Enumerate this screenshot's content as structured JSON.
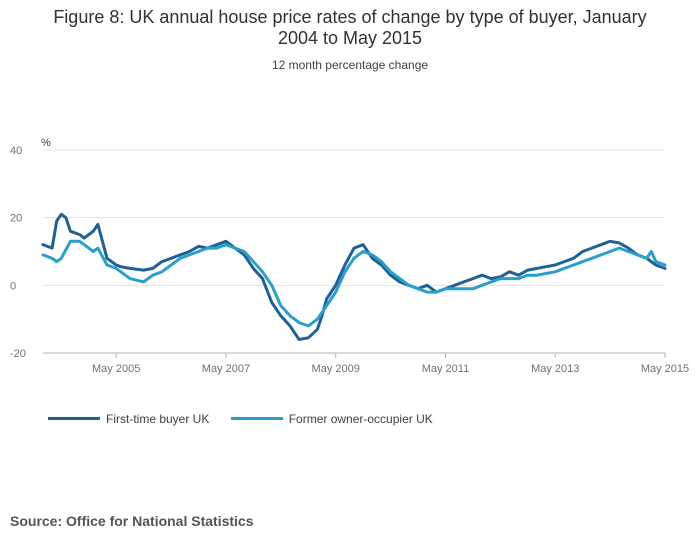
{
  "title_line1": "Figure 8: UK annual house price rates of change by type of buyer, January",
  "title_line2": "2004 to May 2015",
  "subtitle": "12 month percentage change",
  "source": "Source: Office for National Statistics",
  "colors": {
    "first_time": "#206095",
    "former_owner": "#27a0cc",
    "grid": "#e3e3e3"
  },
  "chart_data": {
    "type": "line",
    "ylabel": "%",
    "ylim": [
      -20,
      40
    ],
    "yticks": [
      -20,
      0,
      20,
      40
    ],
    "x_start": "2004-01",
    "x_end": "2015-05",
    "xticks": [
      "May 2005",
      "May 2007",
      "May 2009",
      "May 2011",
      "May 2013",
      "May 2015"
    ],
    "legend_position": "bottom-left",
    "series": [
      {
        "name": "First-time buyer UK",
        "x": [
          "2004-01",
          "2004-03",
          "2004-04",
          "2004-05",
          "2004-06",
          "2004-07",
          "2004-09",
          "2004-10",
          "2004-12",
          "2005-01",
          "2005-03",
          "2005-04",
          "2005-05",
          "2005-06",
          "2005-08",
          "2005-11",
          "2006-01",
          "2006-02",
          "2006-03",
          "2006-05",
          "2006-07",
          "2006-09",
          "2006-11",
          "2007-01",
          "2007-03",
          "2007-05",
          "2007-07",
          "2007-09",
          "2007-11",
          "2008-01",
          "2008-03",
          "2008-05",
          "2008-07",
          "2008-09",
          "2008-11",
          "2009-01",
          "2009-02",
          "2009-03",
          "2009-05",
          "2009-07",
          "2009-09",
          "2009-11",
          "2010-01",
          "2010-03",
          "2010-05",
          "2010-07",
          "2010-09",
          "2010-11",
          "2011-01",
          "2011-03",
          "2011-05",
          "2011-07",
          "2011-09",
          "2011-11",
          "2012-01",
          "2012-03",
          "2012-05",
          "2012-07",
          "2012-09",
          "2012-11",
          "2013-01",
          "2013-03",
          "2013-05",
          "2013-07",
          "2013-09",
          "2013-11",
          "2014-01",
          "2014-03",
          "2014-05",
          "2014-07",
          "2014-09",
          "2014-11",
          "2015-01",
          "2015-03",
          "2015-05"
        ],
        "values": [
          12,
          11,
          19,
          21,
          20,
          16,
          15,
          14,
          16,
          18,
          8,
          7,
          6,
          5.5,
          5,
          4.5,
          5,
          6,
          7,
          8,
          9,
          10,
          11.5,
          11,
          12,
          13,
          11,
          9,
          5,
          2,
          -5,
          -9,
          -12,
          -16,
          -15.5,
          -13,
          -9,
          -4,
          0,
          6,
          11,
          12,
          8,
          6,
          3,
          1,
          0,
          -1,
          0,
          -2,
          -1,
          0,
          1,
          2,
          3,
          2,
          2.5,
          4,
          3,
          4.5,
          5,
          5.5,
          6,
          7,
          8,
          10,
          11,
          12,
          13,
          12.5,
          11,
          9,
          8,
          6,
          5
        ]
      },
      {
        "name": "Former owner-occupier UK",
        "x": [
          "2004-01",
          "2004-03",
          "2004-04",
          "2004-05",
          "2004-07",
          "2004-09",
          "2004-10",
          "2004-12",
          "2005-01",
          "2005-03",
          "2005-05",
          "2005-06",
          "2005-08",
          "2005-11",
          "2006-01",
          "2006-03",
          "2006-05",
          "2006-07",
          "2006-09",
          "2006-11",
          "2007-01",
          "2007-03",
          "2007-05",
          "2007-07",
          "2007-09",
          "2007-11",
          "2008-01",
          "2008-03",
          "2008-05",
          "2008-07",
          "2008-09",
          "2008-11",
          "2009-01",
          "2009-03",
          "2009-05",
          "2009-07",
          "2009-09",
          "2009-11",
          "2010-01",
          "2010-03",
          "2010-05",
          "2010-07",
          "2010-09",
          "2010-11",
          "2011-01",
          "2011-03",
          "2011-05",
          "2011-07",
          "2011-09",
          "2011-11",
          "2012-01",
          "2012-03",
          "2012-05",
          "2012-07",
          "2012-09",
          "2012-11",
          "2013-01",
          "2013-03",
          "2013-05",
          "2013-07",
          "2013-09",
          "2013-11",
          "2014-01",
          "2014-03",
          "2014-05",
          "2014-07",
          "2014-09",
          "2014-11",
          "2015-01",
          "2015-02",
          "2015-03",
          "2015-05"
        ],
        "values": [
          9,
          8,
          7,
          8,
          13,
          13,
          12,
          10,
          11,
          6,
          5,
          4,
          2,
          1,
          3,
          4,
          6,
          8,
          9,
          10,
          11,
          11,
          12,
          11,
          10,
          7,
          4,
          0,
          -6,
          -9,
          -11,
          -12,
          -10,
          -6,
          -2,
          4,
          8,
          10,
          9,
          7,
          4,
          2,
          0,
          -1,
          -2,
          -2,
          -1,
          -1,
          -1,
          -1,
          0,
          1,
          2,
          2,
          2,
          3,
          3,
          3.5,
          4,
          5,
          6,
          7,
          8,
          9,
          10,
          11,
          10,
          9,
          8,
          10,
          7,
          6
        ]
      }
    ]
  }
}
